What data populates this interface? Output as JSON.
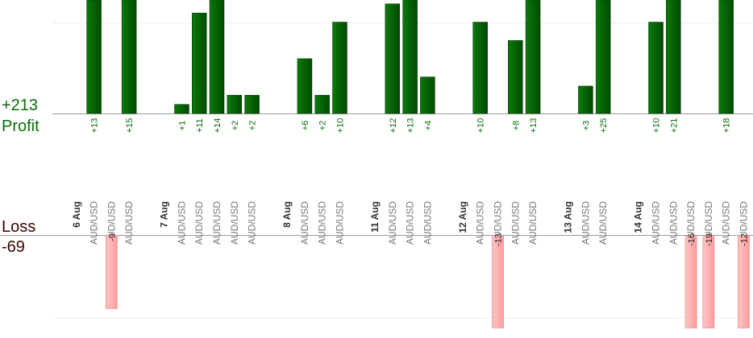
{
  "summary": {
    "profit_total": "+213",
    "profit_label": "Profit",
    "loss_label": "Loss",
    "loss_total": "-69"
  },
  "groups": [
    {
      "date": "6 Aug",
      "trades": [
        {
          "pair": "AUD/USD",
          "value": 13,
          "label": "+13"
        },
        {
          "pair": "AUD/USD",
          "value": -9,
          "label": "-9"
        },
        {
          "pair": "AUD/USD",
          "value": 15,
          "label": "+15"
        }
      ]
    },
    {
      "date": "7 Aug",
      "trades": [
        {
          "pair": "AUD/USD",
          "value": 1,
          "label": "+1"
        },
        {
          "pair": "AUD/USD",
          "value": 11,
          "label": "+11"
        },
        {
          "pair": "AUD/USD",
          "value": 14,
          "label": "+14"
        },
        {
          "pair": "AUD/USD",
          "value": 2,
          "label": "+2"
        },
        {
          "pair": "AUD/USD",
          "value": 2,
          "label": "+2"
        }
      ]
    },
    {
      "date": "8 Aug",
      "trades": [
        {
          "pair": "AUD/USD",
          "value": 6,
          "label": "+6"
        },
        {
          "pair": "AUD/USD",
          "value": 2,
          "label": "+2"
        },
        {
          "pair": "AUD/USD",
          "value": 10,
          "label": "+10"
        }
      ]
    },
    {
      "date": "11 Aug",
      "trades": [
        {
          "pair": "AUD/USD",
          "value": 12,
          "label": "+12"
        },
        {
          "pair": "AUD/USD",
          "value": 13,
          "label": "+13"
        },
        {
          "pair": "AUD/USD",
          "value": 4,
          "label": "+4"
        }
      ]
    },
    {
      "date": "12 Aug",
      "trades": [
        {
          "pair": "AUD/USD",
          "value": 10,
          "label": "+10"
        },
        {
          "pair": "AUD/USD",
          "value": -13,
          "label": "-13"
        },
        {
          "pair": "AUD/USD",
          "value": 8,
          "label": "+8"
        },
        {
          "pair": "AUD/USD",
          "value": 13,
          "label": "+13"
        }
      ]
    },
    {
      "date": "13 Aug",
      "trades": [
        {
          "pair": "AUD/USD",
          "value": 3,
          "label": "+3"
        },
        {
          "pair": "AUD/USD",
          "value": 25,
          "label": "+25"
        }
      ]
    },
    {
      "date": "14 Aug",
      "trades": [
        {
          "pair": "AUD/USD",
          "value": 10,
          "label": "+10"
        },
        {
          "pair": "AUD/USD",
          "value": 21,
          "label": "+21"
        },
        {
          "pair": "AUD/USD",
          "value": -16,
          "label": "-16"
        },
        {
          "pair": "AUD/USD",
          "value": -19,
          "label": "-19"
        },
        {
          "pair": "AUD/USD",
          "value": 18,
          "label": "+18"
        },
        {
          "pair": "AUD/USD",
          "value": -12,
          "label": "-12"
        }
      ]
    }
  ]
}
